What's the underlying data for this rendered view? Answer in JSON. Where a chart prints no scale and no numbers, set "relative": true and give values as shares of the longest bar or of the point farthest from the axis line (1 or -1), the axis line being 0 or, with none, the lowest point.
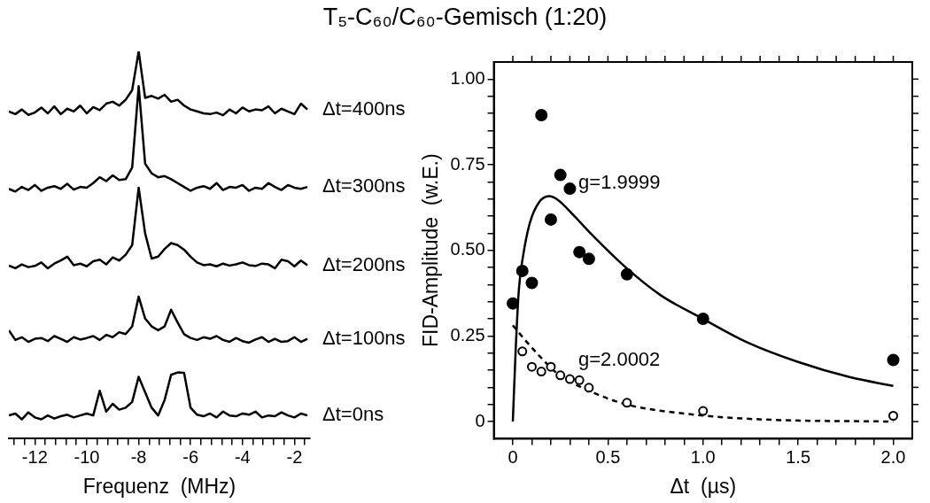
{
  "chart_data": [
    {
      "type": "line",
      "xlabel": "Frequenz  (MHz)",
      "relative": true,
      "tick_labels": "x",
      "marker": "none",
      "line_style": "solid",
      "x": [
        -13,
        -12.75,
        -12.5,
        -12.25,
        -12,
        -11.75,
        -11.5,
        -11.25,
        -11,
        -10.75,
        -10.5,
        -10.25,
        -10,
        -9.75,
        -9.5,
        -9.25,
        -9,
        -8.75,
        -8.5,
        -8.25,
        -8,
        -7.75,
        -7.5,
        -7.25,
        -7,
        -6.75,
        -6.5,
        -6.25,
        -6,
        -5.75,
        -5.5,
        -5.25,
        -5,
        -4.75,
        -4.5,
        -4.25,
        -4,
        -3.75,
        -3.5,
        -3.25,
        -3,
        -2.75,
        -2.5,
        -2.25,
        -2,
        -1.75,
        -1.5
      ],
      "xlim": [
        -13,
        -1.4
      ],
      "xticks": [
        {
          "value": -12.8,
          "label": null
        },
        {
          "value": -12.4,
          "label": null
        },
        -12,
        {
          "value": -11.6,
          "label": null
        },
        {
          "value": -11.2,
          "label": null
        },
        {
          "value": -10.8,
          "label": null
        },
        {
          "value": -10.4,
          "label": null
        },
        -10,
        {
          "value": -9.6,
          "label": null
        },
        {
          "value": -9.2,
          "label": null
        },
        {
          "value": -8.8,
          "label": null
        },
        {
          "value": -8.4,
          "label": null
        },
        -8,
        {
          "value": -7.6,
          "label": null
        },
        {
          "value": -7.2,
          "label": null
        },
        {
          "value": -6.8,
          "label": null
        },
        {
          "value": -6.4,
          "label": null
        },
        -6,
        {
          "value": -5.6,
          "label": null
        },
        {
          "value": -5.2,
          "label": null
        },
        {
          "value": -4.8,
          "label": null
        },
        {
          "value": -4.4,
          "label": null
        },
        -4,
        {
          "value": -3.6,
          "label": null
        },
        {
          "value": -3.2,
          "label": null
        },
        {
          "value": -2.8,
          "label": null
        },
        {
          "value": -2.4,
          "label": null
        },
        -2,
        {
          "value": -1.6,
          "label": null
        }
      ],
      "series": [
        {
          "name": "Δt=400ns",
          "color": "#000000",
          "values": [
            0.845,
            0.838,
            0.85,
            0.836,
            0.842,
            0.855,
            0.84,
            0.858,
            0.838,
            0.852,
            0.845,
            0.86,
            0.84,
            0.856,
            0.848,
            0.865,
            0.87,
            0.86,
            0.875,
            0.9,
            1.0,
            0.88,
            0.885,
            0.878,
            0.888,
            0.87,
            0.875,
            0.86,
            0.85,
            0.845,
            0.84,
            0.838,
            0.842,
            0.835,
            0.85,
            0.84,
            0.855,
            0.845,
            0.85,
            0.848,
            0.858,
            0.84,
            0.852,
            0.845,
            0.838,
            0.865,
            0.85
          ]
        },
        {
          "name": "Δt=300ns",
          "color": "#000000",
          "values": [
            0.645,
            0.638,
            0.65,
            0.642,
            0.655,
            0.64,
            0.648,
            0.652,
            0.645,
            0.658,
            0.643,
            0.65,
            0.648,
            0.66,
            0.675,
            0.665,
            0.68,
            0.668,
            0.67,
            0.7,
            0.91,
            0.71,
            0.685,
            0.675,
            0.678,
            0.67,
            0.66,
            0.65,
            0.64,
            0.648,
            0.652,
            0.645,
            0.66,
            0.642,
            0.65,
            0.648,
            0.655,
            0.64,
            0.648,
            0.645,
            0.66,
            0.65,
            0.642,
            0.655,
            0.648,
            0.645,
            0.65
          ]
        },
        {
          "name": "Δt=200ns",
          "color": "#000000",
          "values": [
            0.447,
            0.44,
            0.45,
            0.443,
            0.446,
            0.455,
            0.44,
            0.452,
            0.46,
            0.47,
            0.448,
            0.452,
            0.445,
            0.458,
            0.462,
            0.45,
            0.468,
            0.46,
            0.475,
            0.5,
            0.648,
            0.53,
            0.465,
            0.47,
            0.49,
            0.505,
            0.5,
            0.488,
            0.47,
            0.455,
            0.448,
            0.45,
            0.445,
            0.452,
            0.447,
            0.45,
            0.455,
            0.448,
            0.446,
            0.452,
            0.45,
            0.44,
            0.462,
            0.458,
            0.445,
            0.46,
            0.448
          ]
        },
        {
          "name": "Δt=100ns",
          "color": "#000000",
          "values": [
            0.28,
            0.255,
            0.262,
            0.25,
            0.258,
            0.26,
            0.252,
            0.265,
            0.258,
            0.25,
            0.262,
            0.256,
            0.26,
            0.265,
            0.255,
            0.268,
            0.262,
            0.275,
            0.27,
            0.29,
            0.367,
            0.31,
            0.29,
            0.28,
            0.29,
            0.333,
            0.3,
            0.27,
            0.26,
            0.255,
            0.262,
            0.258,
            0.265,
            0.255,
            0.25,
            0.26,
            0.252,
            0.248,
            0.256,
            0.262,
            0.25,
            0.258,
            0.25,
            0.252,
            0.262,
            0.25,
            0.258
          ]
        },
        {
          "name": "Δt=0ns",
          "color": "#000000",
          "values": [
            0.06,
            0.065,
            0.05,
            0.068,
            0.055,
            0.05,
            0.06,
            0.052,
            0.058,
            0.062,
            0.055,
            0.06,
            0.065,
            0.06,
            0.124,
            0.07,
            0.09,
            0.075,
            0.08,
            0.095,
            0.16,
            0.12,
            0.08,
            0.06,
            0.1,
            0.165,
            0.171,
            0.17,
            0.08,
            0.062,
            0.058,
            0.065,
            0.055,
            0.07,
            0.06,
            0.058,
            0.065,
            0.062,
            0.07,
            0.055,
            0.06,
            0.058,
            0.068,
            0.06,
            0.055,
            0.065,
            0.06
          ]
        }
      ]
    },
    {
      "type": "scatter",
      "title": "T₅-C₆₀/C₆₀-Gemisch  (1:20)",
      "xlabel": "Δt  (µs)",
      "ylabel": "FID-Amplitude  (w.E.)",
      "xlim": [
        -0.1,
        2.1
      ],
      "ylim": [
        -0.05,
        1.05
      ],
      "xticks": [
        0,
        {
          "value": 0.1,
          "label": null
        },
        {
          "value": 0.2,
          "label": null
        },
        {
          "value": 0.3,
          "label": null
        },
        {
          "value": 0.4,
          "label": null
        },
        0.5,
        {
          "value": 0.6,
          "label": null
        },
        {
          "value": 0.7,
          "label": null
        },
        {
          "value": 0.8,
          "label": null
        },
        {
          "value": 0.9,
          "label": null
        },
        {
          "value": 1.0,
          "label": "1.0"
        },
        {
          "value": 1.1,
          "label": null
        },
        {
          "value": 1.2,
          "label": null
        },
        {
          "value": 1.3,
          "label": null
        },
        {
          "value": 1.4,
          "label": null
        },
        1.5,
        {
          "value": 1.6,
          "label": null
        },
        {
          "value": 1.7,
          "label": null
        },
        {
          "value": 1.8,
          "label": null
        },
        {
          "value": 1.9,
          "label": null
        },
        {
          "value": 2.0,
          "label": "2.0"
        }
      ],
      "yticks": [
        0,
        {
          "value": 0.05,
          "label": null
        },
        {
          "value": 0.1,
          "label": null
        },
        {
          "value": 0.15,
          "label": null
        },
        {
          "value": 0.2,
          "label": null
        },
        0.25,
        {
          "value": 0.3,
          "label": null
        },
        {
          "value": 0.35,
          "label": null
        },
        {
          "value": 0.4,
          "label": null
        },
        {
          "value": 0.45,
          "label": null
        },
        {
          "value": 0.5,
          "label": "0.50"
        },
        {
          "value": 0.55,
          "label": null
        },
        {
          "value": 0.6,
          "label": null
        },
        {
          "value": 0.65,
          "label": null
        },
        {
          "value": 0.7,
          "label": null
        },
        0.75,
        {
          "value": 0.8,
          "label": null
        },
        {
          "value": 0.85,
          "label": null
        },
        {
          "value": 0.9,
          "label": null
        },
        {
          "value": 0.95,
          "label": null
        },
        {
          "value": 1.0,
          "label": "1.00"
        }
      ],
      "series": [
        {
          "marker": "circle",
          "color": "#000000",
          "x": [
            0,
            0.05,
            0.1,
            0.15,
            0.2,
            0.25,
            0.3,
            0.35,
            0.4,
            0.6,
            1.0,
            2.0
          ],
          "values": [
            0.345,
            0.44,
            0.405,
            0.895,
            0.59,
            0.72,
            0.68,
            0.495,
            0.475,
            0.43,
            0.3,
            0.18
          ]
        },
        {
          "marker": "circle",
          "color": "#000000",
          "x": [
            0.05,
            0.1,
            0.15,
            0.2,
            0.25,
            0.3,
            0.35,
            0.4,
            0.6,
            1.0,
            2.0
          ],
          "values": [
            0.205,
            0.16,
            0.146,
            0.16,
            0.135,
            0.124,
            0.121,
            0.099,
            0.055,
            0.031,
            0.017
          ]
        },
        {
          "type": "line",
          "marker": "none",
          "line_style": "solid",
          "color": "#000000",
          "x": [
            0,
            0.015,
            0.032,
            0.054,
            0.09,
            0.136,
            0.19,
            0.235,
            0.325,
            0.415,
            0.596,
            0.777,
            1.0,
            1.23,
            1.5,
            1.77,
            2.0
          ],
          "values": [
            0,
            0.21,
            0.387,
            0.484,
            0.581,
            0.639,
            0.658,
            0.648,
            0.599,
            0.546,
            0.449,
            0.369,
            0.3,
            0.232,
            0.174,
            0.13,
            0.104
          ]
        },
        {
          "type": "line",
          "marker": "none",
          "line_style": "dashed",
          "color": "#000000",
          "x": [
            0,
            0.054,
            0.146,
            0.237,
            0.417,
            0.598,
            0.959,
            1.32,
            2.0
          ],
          "values": [
            0.281,
            0.245,
            0.188,
            0.139,
            0.086,
            0.05,
            0.02,
            0.006,
            0
          ]
        }
      ],
      "annotations": [
        {
          "text": "g=1.9999",
          "x": 0.345,
          "y": 0.697
        },
        "g=2.0002"
      ]
    }
  ]
}
